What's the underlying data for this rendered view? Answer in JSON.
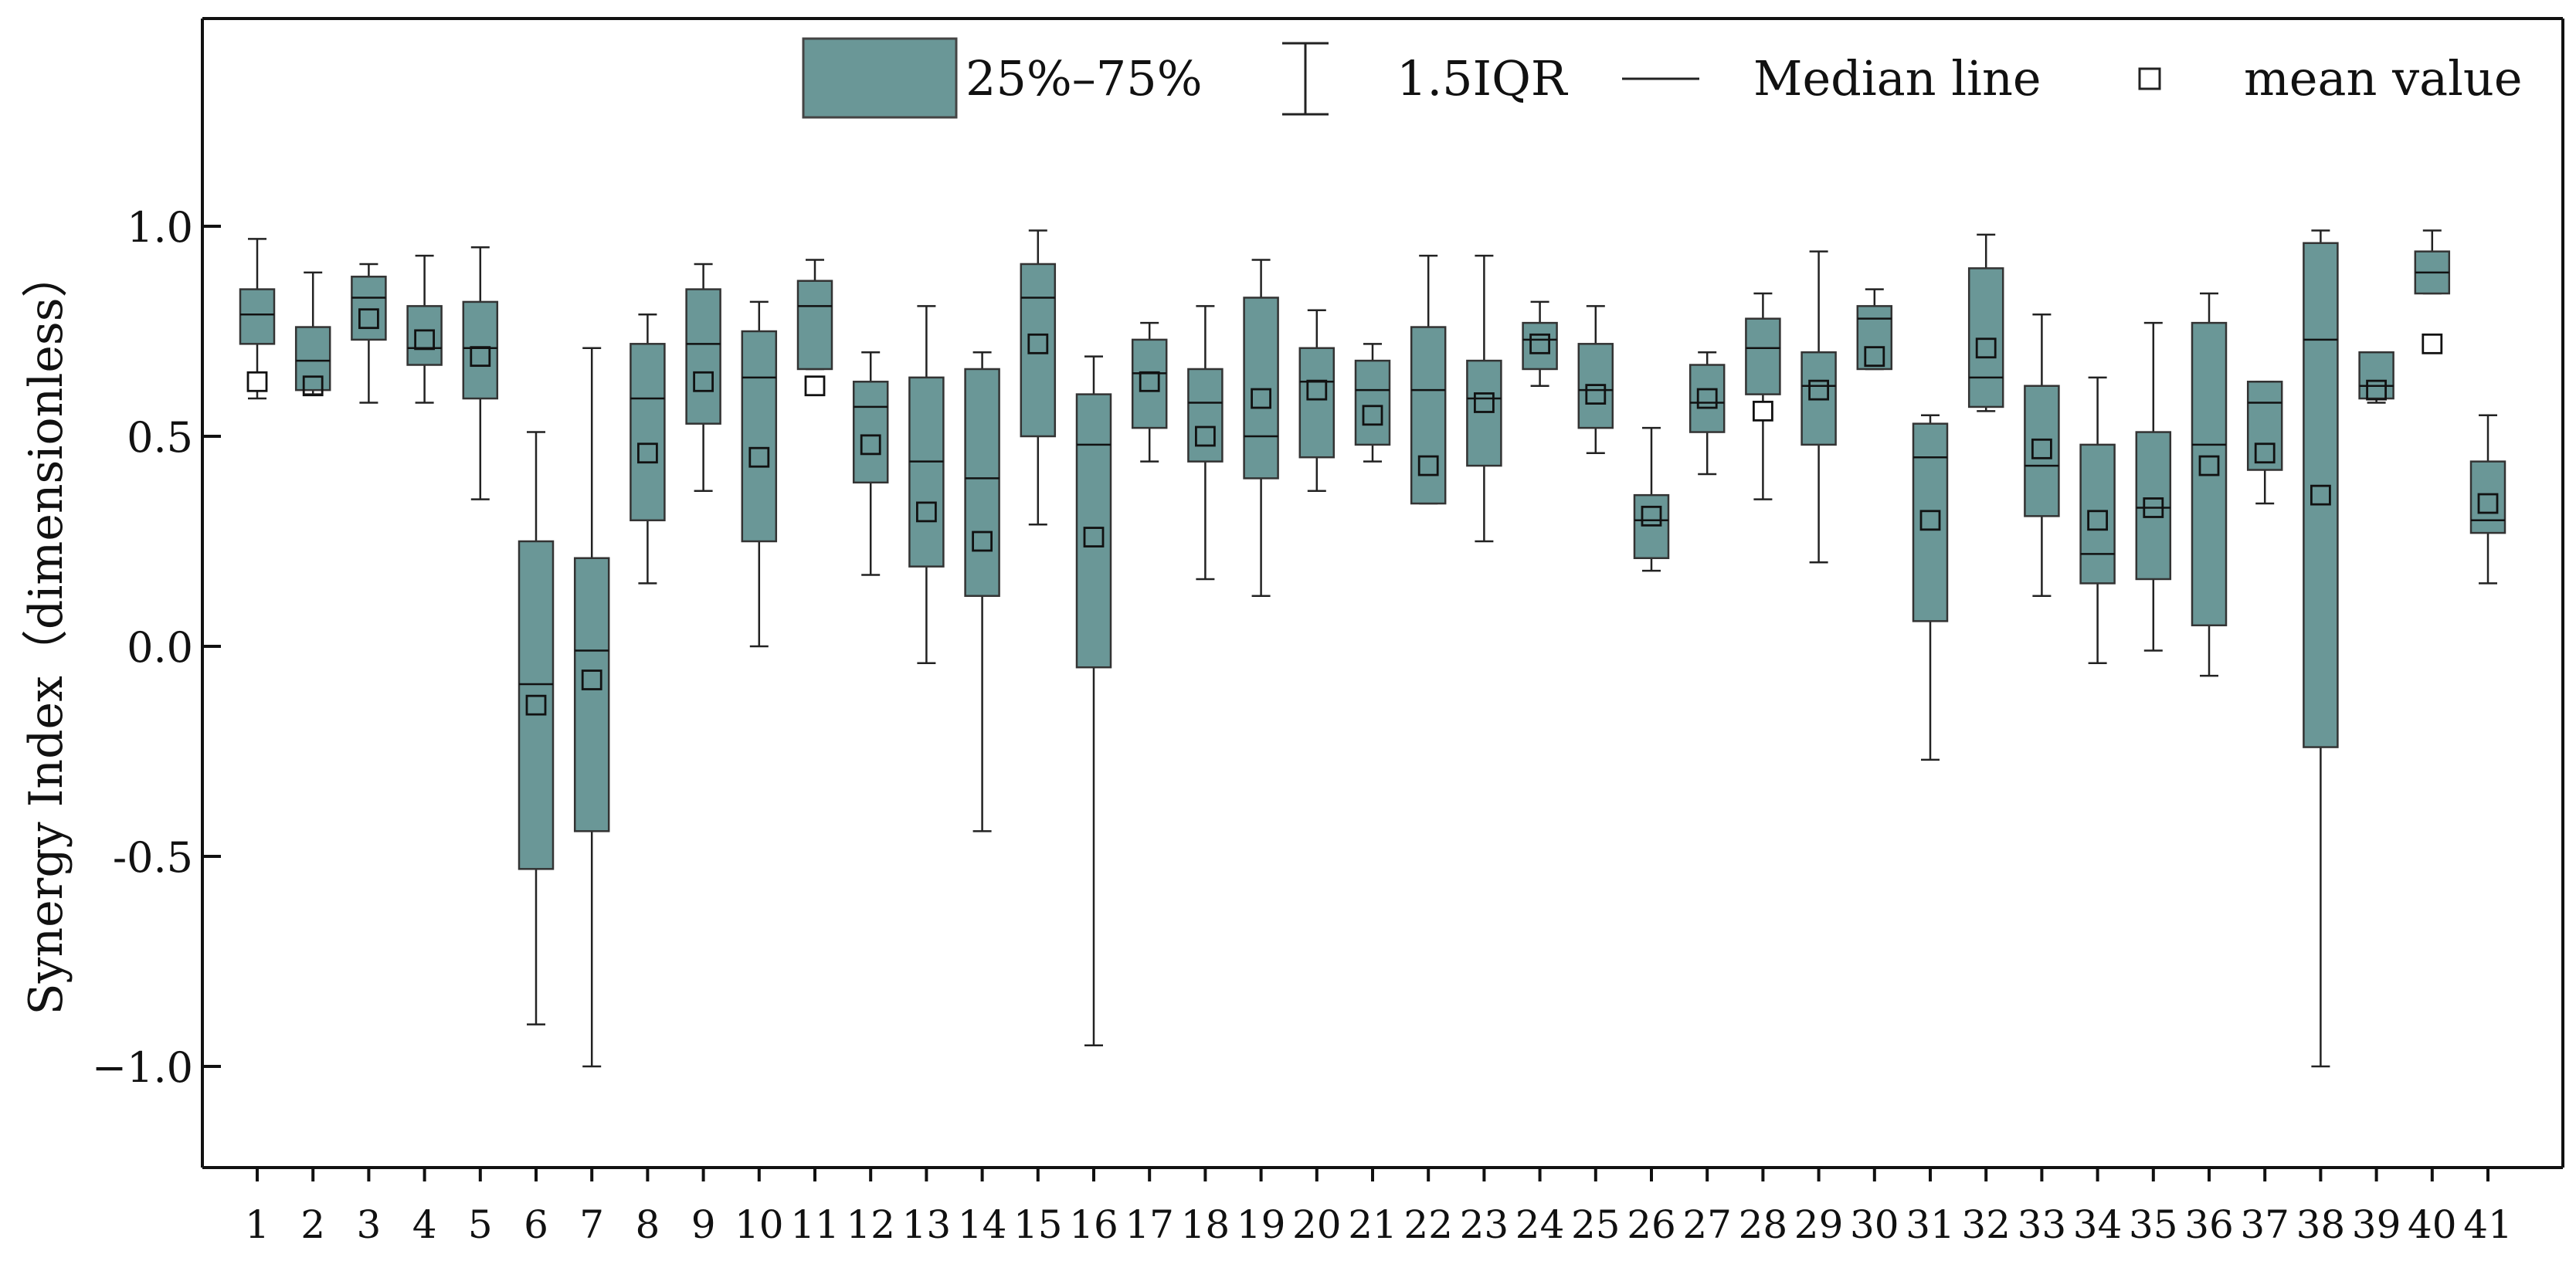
{
  "chart_data": {
    "type": "box",
    "title": "",
    "xlabel": "",
    "ylabel": "Synergy Index（dimensionless）",
    "ylim": [
      -1.25,
      1.5
    ],
    "yticks": [
      -1.0,
      -0.5,
      0.0,
      0.5,
      1.0
    ],
    "ytick_labels": [
      "−1.0",
      "-0.5",
      "0.0",
      "0.5",
      "1.0"
    ],
    "box_color": "#6a9797",
    "legend": {
      "position": "top-right",
      "items": [
        {
          "kind": "box",
          "label": "25%–75%"
        },
        {
          "kind": "whisker",
          "label": "1.5IQR"
        },
        {
          "kind": "median",
          "label": "Median line"
        },
        {
          "kind": "mean",
          "label": "mean value"
        }
      ]
    },
    "categories": [
      "1",
      "2",
      "3",
      "4",
      "5",
      "6",
      "7",
      "8",
      "9",
      "10",
      "11",
      "12",
      "13",
      "14",
      "15",
      "16",
      "17",
      "18",
      "19",
      "20",
      "21",
      "22",
      "23",
      "24",
      "25",
      "26",
      "27",
      "28",
      "29",
      "30",
      "31",
      "32",
      "33",
      "34",
      "35",
      "36",
      "37",
      "38",
      "39",
      "40",
      "41"
    ],
    "boxes": [
      {
        "category": "1",
        "whisker_low": 0.59,
        "q1": 0.72,
        "median": 0.79,
        "q3": 0.85,
        "whisker_high": 0.97,
        "mean": 0.63
      },
      {
        "category": "2",
        "whisker_low": 0.6,
        "q1": 0.61,
        "median": 0.68,
        "q3": 0.76,
        "whisker_high": 0.89,
        "mean": 0.62
      },
      {
        "category": "3",
        "whisker_low": 0.58,
        "q1": 0.73,
        "median": 0.83,
        "q3": 0.88,
        "whisker_high": 0.91,
        "mean": 0.78
      },
      {
        "category": "4",
        "whisker_low": 0.58,
        "q1": 0.67,
        "median": 0.71,
        "q3": 0.81,
        "whisker_high": 0.93,
        "mean": 0.73
      },
      {
        "category": "5",
        "whisker_low": 0.35,
        "q1": 0.59,
        "median": 0.71,
        "q3": 0.82,
        "whisker_high": 0.95,
        "mean": 0.69
      },
      {
        "category": "6",
        "whisker_low": -0.9,
        "q1": -0.53,
        "median": -0.09,
        "q3": 0.25,
        "whisker_high": 0.51,
        "mean": -0.14
      },
      {
        "category": "7",
        "whisker_low": -1.0,
        "q1": -0.44,
        "median": -0.01,
        "q3": 0.21,
        "whisker_high": 0.71,
        "mean": -0.08
      },
      {
        "category": "8",
        "whisker_low": 0.15,
        "q1": 0.3,
        "median": 0.59,
        "q3": 0.72,
        "whisker_high": 0.79,
        "mean": 0.46
      },
      {
        "category": "9",
        "whisker_low": 0.37,
        "q1": 0.53,
        "median": 0.72,
        "q3": 0.85,
        "whisker_high": 0.91,
        "mean": 0.63
      },
      {
        "category": "10",
        "whisker_low": 0.0,
        "q1": 0.25,
        "median": 0.64,
        "q3": 0.75,
        "whisker_high": 0.82,
        "mean": 0.45
      },
      {
        "category": "11",
        "whisker_low": 0.66,
        "q1": 0.66,
        "median": 0.81,
        "q3": 0.87,
        "whisker_high": 0.92,
        "mean": 0.62
      },
      {
        "category": "12",
        "whisker_low": 0.17,
        "q1": 0.39,
        "median": 0.57,
        "q3": 0.63,
        "whisker_high": 0.7,
        "mean": 0.48
      },
      {
        "category": "13",
        "whisker_low": -0.04,
        "q1": 0.19,
        "median": 0.44,
        "q3": 0.64,
        "whisker_high": 0.81,
        "mean": 0.32
      },
      {
        "category": "14",
        "whisker_low": -0.44,
        "q1": 0.12,
        "median": 0.4,
        "q3": 0.66,
        "whisker_high": 0.7,
        "mean": 0.25
      },
      {
        "category": "15",
        "whisker_low": 0.29,
        "q1": 0.5,
        "median": 0.83,
        "q3": 0.91,
        "whisker_high": 0.99,
        "mean": 0.72
      },
      {
        "category": "16",
        "whisker_low": -0.95,
        "q1": -0.05,
        "median": 0.48,
        "q3": 0.6,
        "whisker_high": 0.69,
        "mean": 0.26
      },
      {
        "category": "17",
        "whisker_low": 0.44,
        "q1": 0.52,
        "median": 0.65,
        "q3": 0.73,
        "whisker_high": 0.77,
        "mean": 0.63
      },
      {
        "category": "18",
        "whisker_low": 0.16,
        "q1": 0.44,
        "median": 0.58,
        "q3": 0.66,
        "whisker_high": 0.81,
        "mean": 0.5
      },
      {
        "category": "19",
        "whisker_low": 0.12,
        "q1": 0.4,
        "median": 0.5,
        "q3": 0.83,
        "whisker_high": 0.92,
        "mean": 0.59
      },
      {
        "category": "20",
        "whisker_low": 0.37,
        "q1": 0.45,
        "median": 0.63,
        "q3": 0.71,
        "whisker_high": 0.8,
        "mean": 0.61
      },
      {
        "category": "21",
        "whisker_low": 0.44,
        "q1": 0.48,
        "median": 0.61,
        "q3": 0.68,
        "whisker_high": 0.72,
        "mean": 0.55
      },
      {
        "category": "22",
        "whisker_low": 0.34,
        "q1": 0.34,
        "median": 0.61,
        "q3": 0.76,
        "whisker_high": 0.93,
        "mean": 0.43
      },
      {
        "category": "23",
        "whisker_low": 0.25,
        "q1": 0.43,
        "median": 0.59,
        "q3": 0.68,
        "whisker_high": 0.93,
        "mean": 0.58
      },
      {
        "category": "24",
        "whisker_low": 0.62,
        "q1": 0.66,
        "median": 0.73,
        "q3": 0.77,
        "whisker_high": 0.82,
        "mean": 0.72
      },
      {
        "category": "25",
        "whisker_low": 0.46,
        "q1": 0.52,
        "median": 0.61,
        "q3": 0.72,
        "whisker_high": 0.81,
        "mean": 0.6
      },
      {
        "category": "26",
        "whisker_low": 0.18,
        "q1": 0.21,
        "median": 0.3,
        "q3": 0.36,
        "whisker_high": 0.52,
        "mean": 0.31
      },
      {
        "category": "27",
        "whisker_low": 0.41,
        "q1": 0.51,
        "median": 0.58,
        "q3": 0.67,
        "whisker_high": 0.7,
        "mean": 0.59
      },
      {
        "category": "28",
        "whisker_low": 0.35,
        "q1": 0.6,
        "median": 0.71,
        "q3": 0.78,
        "whisker_high": 0.84,
        "mean": 0.56
      },
      {
        "category": "29",
        "whisker_low": 0.2,
        "q1": 0.48,
        "median": 0.62,
        "q3": 0.7,
        "whisker_high": 0.94,
        "mean": 0.61
      },
      {
        "category": "30",
        "whisker_low": 0.66,
        "q1": 0.66,
        "median": 0.78,
        "q3": 0.81,
        "whisker_high": 0.85,
        "mean": 0.69
      },
      {
        "category": "31",
        "whisker_low": -0.27,
        "q1": 0.06,
        "median": 0.45,
        "q3": 0.53,
        "whisker_high": 0.55,
        "mean": 0.3
      },
      {
        "category": "32",
        "whisker_low": 0.56,
        "q1": 0.57,
        "median": 0.64,
        "q3": 0.9,
        "whisker_high": 0.98,
        "mean": 0.71
      },
      {
        "category": "33",
        "whisker_low": 0.12,
        "q1": 0.31,
        "median": 0.43,
        "q3": 0.62,
        "whisker_high": 0.79,
        "mean": 0.47
      },
      {
        "category": "34",
        "whisker_low": -0.04,
        "q1": 0.15,
        "median": 0.22,
        "q3": 0.48,
        "whisker_high": 0.64,
        "mean": 0.3
      },
      {
        "category": "35",
        "whisker_low": -0.01,
        "q1": 0.16,
        "median": 0.33,
        "q3": 0.51,
        "whisker_high": 0.77,
        "mean": 0.33
      },
      {
        "category": "36",
        "whisker_low": -0.07,
        "q1": 0.05,
        "median": 0.48,
        "q3": 0.77,
        "whisker_high": 0.84,
        "mean": 0.43
      },
      {
        "category": "37",
        "whisker_low": 0.34,
        "q1": 0.42,
        "median": 0.58,
        "q3": 0.63,
        "whisker_high": 0.63,
        "mean": 0.46
      },
      {
        "category": "38",
        "whisker_low": -1.0,
        "q1": -0.24,
        "median": 0.73,
        "q3": 0.96,
        "whisker_high": 0.99,
        "mean": 0.36
      },
      {
        "category": "39",
        "whisker_low": 0.58,
        "q1": 0.59,
        "median": 0.62,
        "q3": 0.7,
        "whisker_high": 0.7,
        "mean": 0.61
      },
      {
        "category": "40",
        "whisker_low": 0.84,
        "q1": 0.84,
        "median": 0.89,
        "q3": 0.94,
        "whisker_high": 0.99,
        "mean": 0.72
      },
      {
        "category": "41",
        "whisker_low": 0.15,
        "q1": 0.27,
        "median": 0.3,
        "q3": 0.44,
        "whisker_high": 0.55,
        "mean": 0.34
      }
    ]
  }
}
